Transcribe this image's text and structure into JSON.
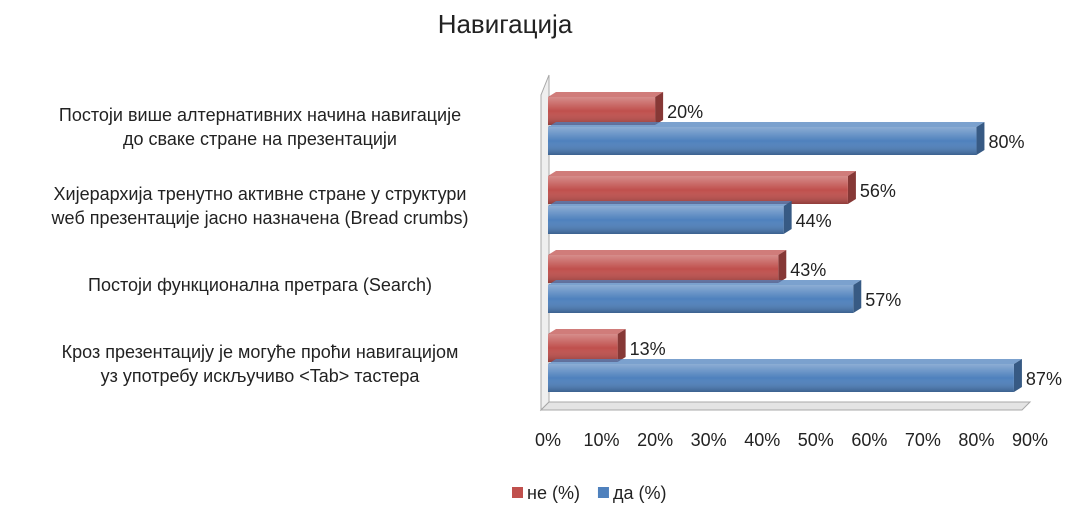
{
  "chart_data": {
    "type": "bar",
    "orientation": "horizontal",
    "title": "Навигација",
    "categories": [
      "Постоји више алтернативних начина навигације\nдо сваке стране на презентацији",
      "Хијерархија тренутно активне стране у структури\nweб презентације јасно назначена (Bread crumbs)",
      "Постоји функционална претрага (Search)",
      "Кроз презентацију је могуће проћи навигацијом\nуз употребу искључиво <Tab> тастера"
    ],
    "series": [
      {
        "name": "не (%)",
        "color": "#c0504d",
        "values": [
          20,
          56,
          43,
          13
        ],
        "value_labels": [
          "20%",
          "56%",
          "43%",
          "13%"
        ]
      },
      {
        "name": "да (%)",
        "color": "#4f81bd",
        "values": [
          80,
          44,
          57,
          87
        ],
        "value_labels": [
          "80%",
          "44%",
          "57%",
          "87%"
        ]
      }
    ],
    "xlim": [
      0,
      90
    ],
    "xticks": [
      {
        "value": 0,
        "label": "0%"
      },
      {
        "value": 10,
        "label": "10%"
      },
      {
        "value": 20,
        "label": "20%"
      },
      {
        "value": 30,
        "label": "30%"
      },
      {
        "value": 40,
        "label": "40%"
      },
      {
        "value": 50,
        "label": "50%"
      },
      {
        "value": 60,
        "label": "60%"
      },
      {
        "value": 70,
        "label": "70%"
      },
      {
        "value": 80,
        "label": "80%"
      },
      {
        "value": 90,
        "label": "90%"
      }
    ],
    "grid": false,
    "legend": "bottom"
  }
}
